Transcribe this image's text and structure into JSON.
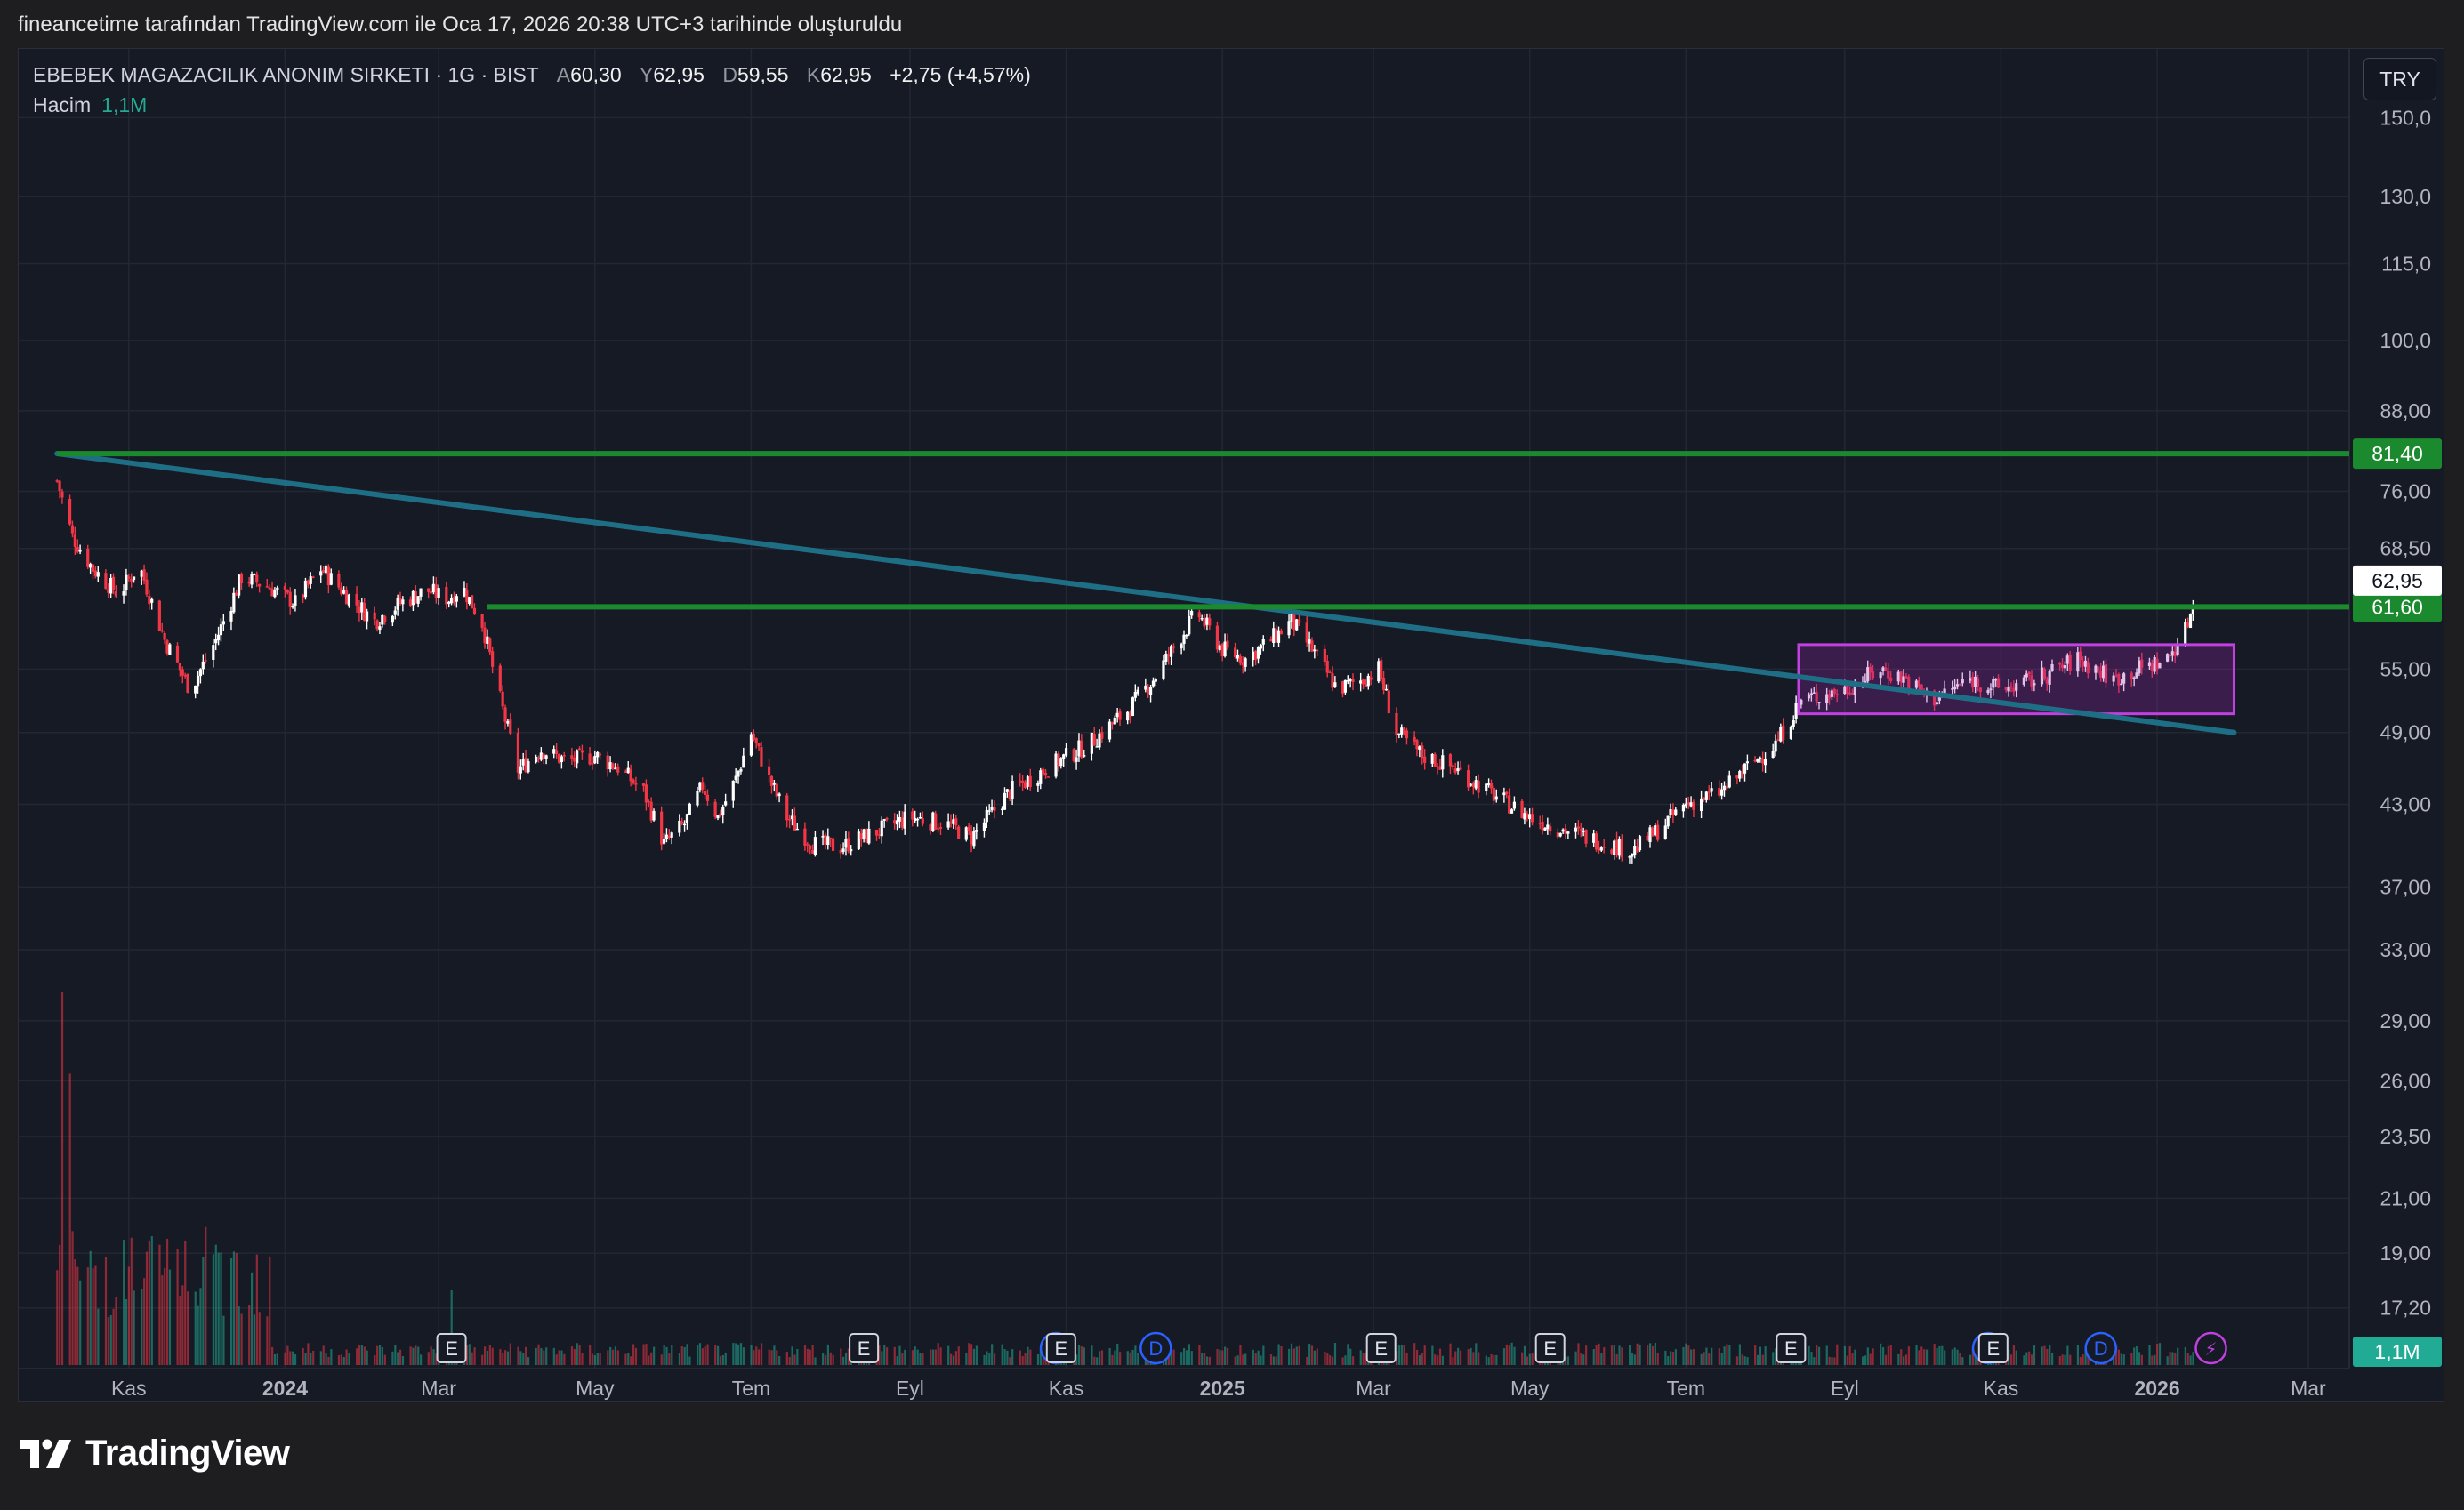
{
  "caption": "fineancetime tarafından TradingView.com ile Oca 17, 2026 20:38 UTC+3 tarihinde oluşturuldu",
  "legend": {
    "symbol": "EBEBEK MAGAZACILIK ANONIM SIRKETI · 1G · BIST",
    "open_label": "A",
    "open": "60,30",
    "high_label": "Y",
    "high": "62,95",
    "low_label": "D",
    "low": "59,55",
    "close_label": "K",
    "close": "62,95",
    "change": "+2,75 (+4,57%)"
  },
  "volume": {
    "label": "Hacim",
    "value": "1,1M"
  },
  "currency": "TRY",
  "brand": "TradingView",
  "colors": {
    "up": "#ffffff",
    "down": "#f23645",
    "volume_up": "#22ab94",
    "volume_down": "#f23645",
    "resistance": "#1b8a2e",
    "trendline": "#1e6f86",
    "box": "#9c27b0"
  },
  "chart_data": {
    "type": "candlestick",
    "y_scale": "log",
    "ylim": [
      15.4,
      170
    ],
    "price_ticks": [
      "150,0",
      "130,0",
      "115,0",
      "100,0",
      "88,00",
      "76,00",
      "68,50",
      "55,00",
      "49,00",
      "43,00",
      "37,00",
      "33,00",
      "29,00",
      "26,00",
      "23,50",
      "21,00",
      "19,00",
      "17,20"
    ],
    "price_tick_values": [
      150,
      130,
      115,
      100,
      88,
      76,
      68.5,
      55,
      49,
      43,
      37,
      33,
      29,
      26,
      23.5,
      21,
      19,
      17.2
    ],
    "x_ticks": [
      "Kas",
      "2024",
      "Mar",
      "May",
      "Tem",
      "Eyl",
      "Kas",
      "2025",
      "Mar",
      "May",
      "Tem",
      "Eyl",
      "Kas",
      "2026",
      "Mar"
    ],
    "x_tick_dates": [
      "2023-11-01",
      "2024-01-01",
      "2024-03-01",
      "2024-05-01",
      "2024-07-01",
      "2024-09-01",
      "2024-11-01",
      "2025-01-01",
      "2025-03-01",
      "2025-05-01",
      "2025-07-01",
      "2025-09-01",
      "2025-11-01",
      "2026-01-01",
      "2026-03-01"
    ],
    "x_range": [
      "2023-09-19",
      "2026-03-17"
    ],
    "horizontal_lines": [
      {
        "price": 81.4,
        "label": "81,40",
        "color": "#1b8a2e"
      },
      {
        "price": 61.6,
        "label": "61,60",
        "color": "#1b8a2e"
      }
    ],
    "last_price": {
      "price": 62.95,
      "label": "62,95"
    },
    "trendline": {
      "start": [
        "2023-10-04",
        81.4
      ],
      "end": [
        "2026-01-31",
        49.0
      ]
    },
    "range_box": {
      "start": "2025-08-14",
      "end": "2026-01-31",
      "top": 57.5,
      "bottom": 50.7
    },
    "price_path": [
      [
        "2023-10-04",
        77.5
      ],
      [
        "2023-10-10",
        70
      ],
      [
        "2023-10-18",
        66
      ],
      [
        "2023-10-28",
        63
      ],
      [
        "2023-11-05",
        66.5
      ],
      [
        "2023-11-15",
        58
      ],
      [
        "2023-11-25",
        53
      ],
      [
        "2023-12-05",
        58
      ],
      [
        "2023-12-15",
        65
      ],
      [
        "2023-12-25",
        64
      ],
      [
        "2024-01-05",
        62
      ],
      [
        "2024-01-15",
        66
      ],
      [
        "2024-01-25",
        63
      ],
      [
        "2024-02-05",
        60
      ],
      [
        "2024-02-15",
        62
      ],
      [
        "2024-02-25",
        63.5
      ],
      [
        "2024-03-05",
        62.5
      ],
      [
        "2024-03-10",
        64
      ],
      [
        "2024-03-18",
        59.8
      ],
      [
        "2024-03-25",
        52
      ],
      [
        "2024-04-01",
        45.8
      ],
      [
        "2024-04-10",
        47.5
      ],
      [
        "2024-04-20",
        46.5
      ],
      [
        "2024-05-01",
        47
      ],
      [
        "2024-05-10",
        46
      ],
      [
        "2024-05-20",
        44
      ],
      [
        "2024-05-28",
        40
      ],
      [
        "2024-06-05",
        41.5
      ],
      [
        "2024-06-12",
        44.5
      ],
      [
        "2024-06-18",
        42
      ],
      [
        "2024-06-25",
        45
      ],
      [
        "2024-07-01",
        49
      ],
      [
        "2024-07-08",
        45
      ],
      [
        "2024-07-15",
        42
      ],
      [
        "2024-07-25",
        40
      ],
      [
        "2024-08-05",
        39.8
      ],
      [
        "2024-08-20",
        41
      ],
      [
        "2024-09-01",
        42
      ],
      [
        "2024-09-15",
        41.5
      ],
      [
        "2024-09-25",
        40.5
      ],
      [
        "2024-10-10",
        44
      ],
      [
        "2024-10-25",
        46
      ],
      [
        "2024-11-10",
        48
      ],
      [
        "2024-11-25",
        51
      ],
      [
        "2024-12-05",
        54
      ],
      [
        "2024-12-15",
        58
      ],
      [
        "2024-12-22",
        61
      ],
      [
        "2025-01-01",
        57
      ],
      [
        "2025-01-10",
        56
      ],
      [
        "2025-01-20",
        58
      ],
      [
        "2025-01-28",
        60
      ],
      [
        "2025-02-05",
        57
      ],
      [
        "2025-02-15",
        53
      ],
      [
        "2025-02-25",
        54
      ],
      [
        "2025-03-03",
        55
      ],
      [
        "2025-03-10",
        49
      ],
      [
        "2025-03-20",
        47
      ],
      [
        "2025-04-01",
        46
      ],
      [
        "2025-04-15",
        44
      ],
      [
        "2025-05-01",
        42
      ],
      [
        "2025-05-15",
        41
      ],
      [
        "2025-06-01",
        40
      ],
      [
        "2025-06-10",
        39.5
      ],
      [
        "2025-06-20",
        41
      ],
      [
        "2025-07-01",
        43
      ],
      [
        "2025-07-15",
        44
      ],
      [
        "2025-07-25",
        46
      ],
      [
        "2025-08-05",
        48
      ],
      [
        "2025-08-15",
        52
      ],
      [
        "2025-09-01",
        53
      ],
      [
        "2025-09-15",
        55
      ],
      [
        "2025-09-25",
        54
      ],
      [
        "2025-10-05",
        52
      ],
      [
        "2025-10-20",
        54
      ],
      [
        "2025-11-01",
        53
      ],
      [
        "2025-11-15",
        54
      ],
      [
        "2025-12-01",
        56
      ],
      [
        "2025-12-15",
        54
      ],
      [
        "2025-12-25",
        55
      ],
      [
        "2026-01-05",
        56
      ],
      [
        "2026-01-12",
        59
      ],
      [
        "2026-01-16",
        62.95
      ]
    ],
    "events": [
      {
        "date": "2024-03-06",
        "label": "E"
      },
      {
        "date": "2024-08-14",
        "label": "E"
      },
      {
        "date": "2024-10-28",
        "label": "D"
      },
      {
        "date": "2024-10-30",
        "label": "E"
      },
      {
        "date": "2024-12-06",
        "label": "D"
      },
      {
        "date": "2025-03-04",
        "label": "E"
      },
      {
        "date": "2025-05-09",
        "label": "E"
      },
      {
        "date": "2025-08-11",
        "label": "E"
      },
      {
        "date": "2025-10-27",
        "label": "D"
      },
      {
        "date": "2025-10-29",
        "label": "E"
      },
      {
        "date": "2025-12-10",
        "label": "D"
      },
      {
        "date": "2026-01-22",
        "label": "⚡"
      }
    ]
  }
}
